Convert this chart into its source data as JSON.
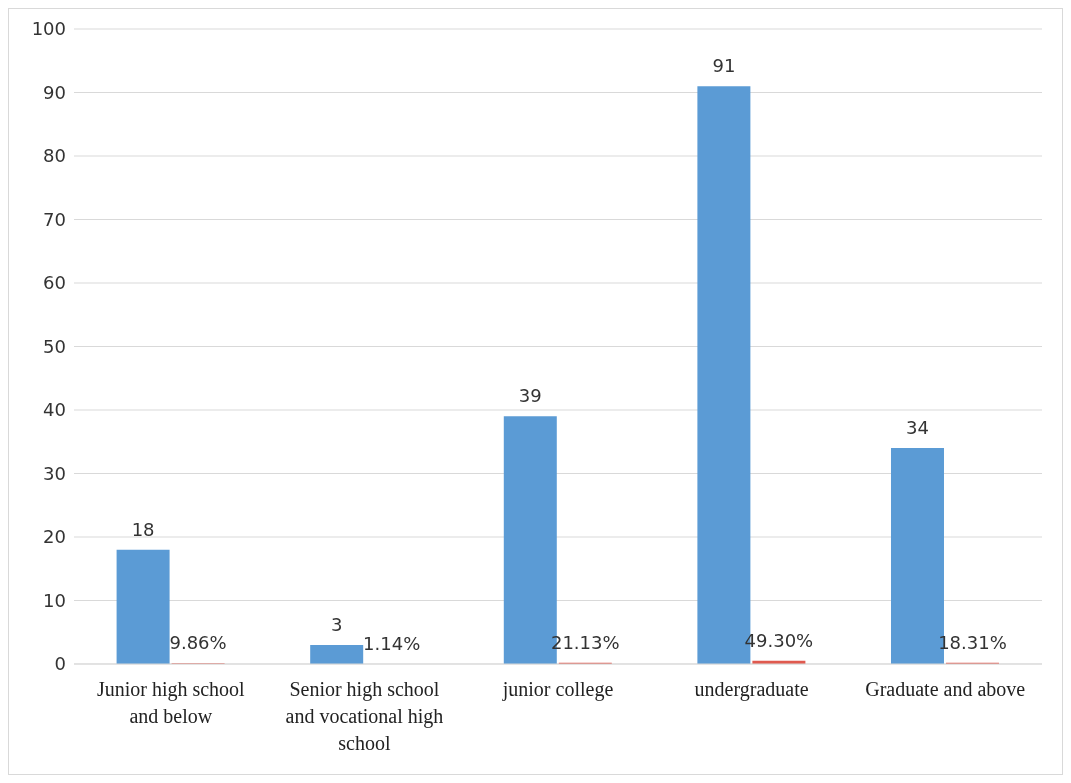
{
  "chart_data": {
    "type": "bar",
    "categories": [
      "Junior high school and below",
      "Senior high school and vocational high school",
      "junior college",
      "undergraduate",
      "Graduate and above"
    ],
    "series": [
      {
        "color": "#5b9bd5",
        "values": [
          18,
          3,
          39,
          91,
          34
        ],
        "value_labels": [
          "18",
          "3",
          "39",
          "91",
          "34"
        ]
      },
      {
        "color": "#e05a4f",
        "values": [
          0.0986,
          0.0114,
          0.2113,
          0.493,
          0.1831
        ],
        "value_labels": [
          "9.86%",
          "1.14%",
          "21.13%",
          "49.30%",
          "18.31%"
        ]
      }
    ],
    "ylim": [
      0,
      100
    ],
    "yticks": [
      0,
      10,
      20,
      30,
      40,
      50,
      60,
      70,
      80,
      90,
      100
    ],
    "grid": "y",
    "legend": false
  }
}
